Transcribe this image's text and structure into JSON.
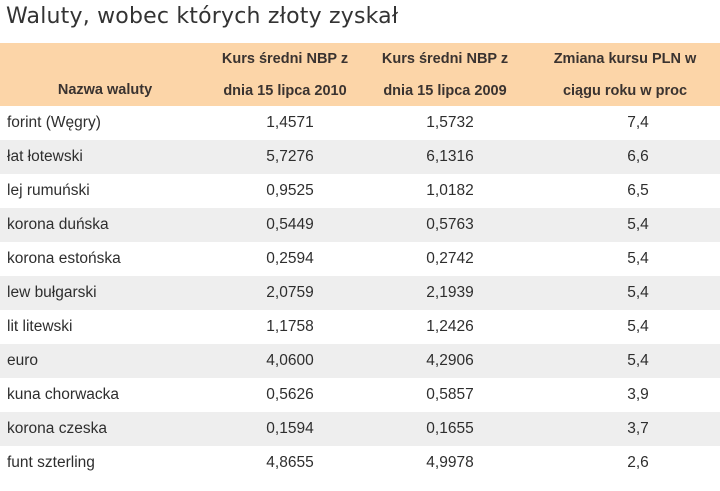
{
  "title": "Waluty, wobec których złoty zyskał",
  "colors": {
    "header_bg": "#fcd5a8",
    "row_alt_bg": "#eeeeee",
    "row_bg": "#ffffff"
  },
  "table": {
    "headers": [
      {
        "line1": "",
        "line2": "Nazwa waluty"
      },
      {
        "line1": "Kurs średni NBP z",
        "line2": "dnia 15 lipca 2010"
      },
      {
        "line1": "Kurs średni NBP z",
        "line2": "dnia 15 lipca 2009"
      },
      {
        "line1": "Zmiana kursu PLN  w",
        "line2": "ciągu roku w proc"
      }
    ],
    "rows": [
      [
        "forint (Węgry)",
        "1,4571",
        "1,5732",
        "7,4"
      ],
      [
        "łat łotewski",
        "5,7276",
        "6,1316",
        "6,6"
      ],
      [
        "lej rumuński",
        "0,9525",
        "1,0182",
        "6,5"
      ],
      [
        "korona duńska",
        "0,5449",
        "0,5763",
        "5,4"
      ],
      [
        "korona estońska",
        "0,2594",
        "0,2742",
        "5,4"
      ],
      [
        "lew bułgarski",
        "2,0759",
        "2,1939",
        "5,4"
      ],
      [
        "lit litewski",
        "1,1758",
        "1,2426",
        "5,4"
      ],
      [
        "euro",
        "4,0600",
        "4,2906",
        "5,4"
      ],
      [
        "kuna chorwacka",
        "0,5626",
        "0,5857",
        "3,9"
      ],
      [
        "korona czeska",
        "0,1594",
        "0,1655",
        "3,7"
      ],
      [
        "funt szterling",
        "4,8655",
        "4,9978",
        "2,6"
      ]
    ]
  }
}
